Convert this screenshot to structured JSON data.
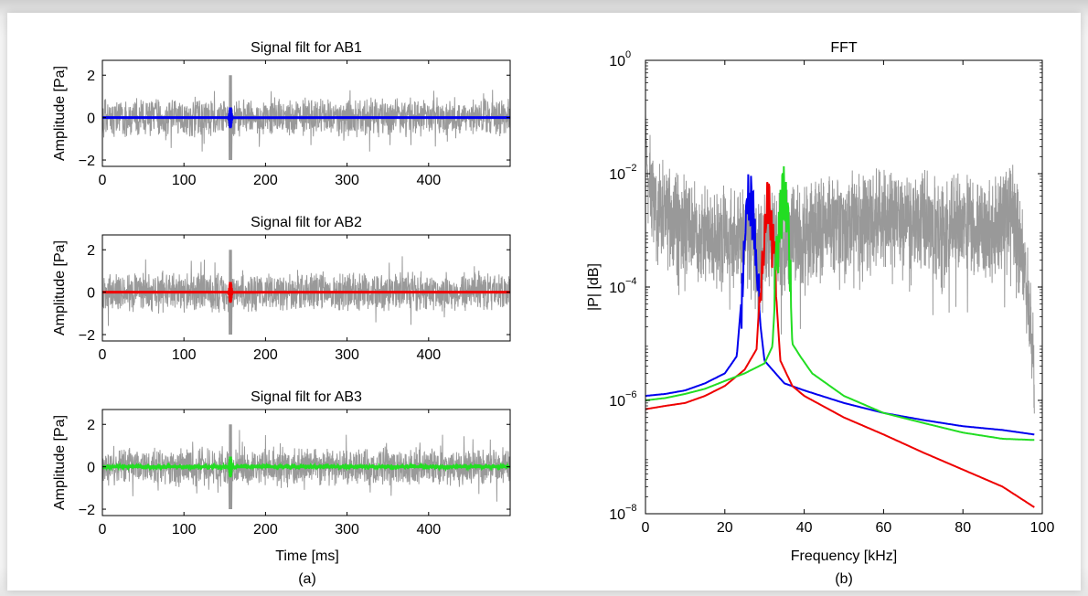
{
  "panel_labels": {
    "a": "(a)",
    "b": "(b)"
  },
  "chart_data": [
    {
      "type": "line",
      "title": "Signal filt for AB1",
      "xlabel": "",
      "ylabel": "Amplitude [Pa]",
      "xlim": [
        0,
        500
      ],
      "ylim": [
        -2.3,
        2.7
      ],
      "xticks": [
        0,
        100,
        200,
        300,
        400
      ],
      "yticks": [
        -2,
        0,
        2
      ],
      "event_ms": 157,
      "series": [
        {
          "role": "raw",
          "color": "#999999",
          "amplitude_typical": 1.0,
          "amplitude_max": 2.0
        },
        {
          "role": "filtered",
          "color": "#0000ee",
          "amplitude_max": 0.5
        }
      ]
    },
    {
      "type": "line",
      "title": "Signal filt for AB2",
      "xlabel": "",
      "ylabel": "Amplitude [Pa]",
      "xlim": [
        0,
        500
      ],
      "ylim": [
        -2.3,
        2.7
      ],
      "xticks": [
        0,
        100,
        200,
        300,
        400
      ],
      "yticks": [
        -2,
        0,
        2
      ],
      "event_ms": 157,
      "series": [
        {
          "role": "raw",
          "color": "#999999",
          "amplitude_typical": 1.0,
          "amplitude_max": 2.0
        },
        {
          "role": "filtered",
          "color": "#ee0000",
          "amplitude_max": 0.5
        }
      ]
    },
    {
      "type": "line",
      "title": "Signal filt for AB3",
      "xlabel": "Time [ms]",
      "ylabel": "Amplitude [Pa]",
      "xlim": [
        0,
        500
      ],
      "ylim": [
        -2.3,
        2.7
      ],
      "xticks": [
        0,
        100,
        200,
        300,
        400
      ],
      "yticks": [
        -2,
        0,
        2
      ],
      "event_ms": 157,
      "series": [
        {
          "role": "raw",
          "color": "#999999",
          "amplitude_typical": 1.0,
          "amplitude_max": 2.0
        },
        {
          "role": "filtered",
          "color": "#22dd22",
          "amplitude_max": 0.5
        }
      ]
    },
    {
      "type": "line",
      "title": "FFT",
      "xlabel": "Frequency [kHz]",
      "ylabel": "|P| [dB]",
      "xlim": [
        0,
        100
      ],
      "ylim": [
        1e-08,
        1
      ],
      "yscale": "log",
      "xticks": [
        0,
        20,
        40,
        60,
        80,
        100
      ],
      "yticks": [
        {
          "value": 1e-08,
          "base": "10",
          "exp": "−8"
        },
        {
          "value": 1e-06,
          "base": "10",
          "exp": "−6"
        },
        {
          "value": 0.0001,
          "base": "10",
          "exp": "−4"
        },
        {
          "value": 0.01,
          "base": "10",
          "exp": "−2"
        },
        {
          "value": 1,
          "base": "10",
          "exp": "0"
        }
      ],
      "series": [
        {
          "role": "raw-spectrum",
          "color": "#999999",
          "x": [
            0,
            0.5,
            2,
            5,
            10,
            15,
            20,
            25,
            30,
            35,
            40,
            45,
            50,
            55,
            60,
            65,
            70,
            75,
            80,
            85,
            90,
            92,
            93,
            94,
            95,
            96,
            97,
            98
          ],
          "y": [
            0.1,
            0.01,
            0.004,
            0.002,
            0.0012,
            0.0009,
            0.0008,
            0.0007,
            0.0006,
            0.0007,
            0.0009,
            0.0012,
            0.0015,
            0.0015,
            0.0016,
            0.0014,
            0.0015,
            0.0012,
            0.0013,
            0.0011,
            0.0012,
            0.004,
            0.0015,
            0.0006,
            0.0003,
            0.0001,
            3e-05,
            4e-06
          ]
        },
        {
          "role": "AB1-spectrum",
          "color": "#0000ee",
          "x": [
            0,
            5,
            10,
            15,
            20,
            23,
            25,
            26,
            27,
            28,
            29,
            30,
            35,
            40,
            50,
            60,
            70,
            80,
            90,
            98
          ],
          "y": [
            1.2e-06,
            1.3e-06,
            1.5e-06,
            2e-06,
            3e-06,
            6e-06,
            0.0003,
            0.006,
            0.002,
            0.0002,
            2e-05,
            5e-06,
            2e-06,
            1.5e-06,
            9e-07,
            6e-07,
            4.5e-07,
            3.5e-07,
            3e-07,
            2.5e-07
          ]
        },
        {
          "role": "AB2-spectrum",
          "color": "#ee0000",
          "x": [
            0,
            5,
            10,
            15,
            20,
            25,
            28,
            29.5,
            30.5,
            31.5,
            32.5,
            34,
            37,
            40,
            50,
            60,
            70,
            80,
            90,
            98
          ],
          "y": [
            7e-07,
            8e-07,
            9e-07,
            1.2e-06,
            1.8e-06,
            3.5e-06,
            8e-06,
            0.0005,
            0.003,
            0.002,
            0.0002,
            5e-06,
            1.8e-06,
            1.2e-06,
            5e-07,
            2.5e-07,
            1.2e-07,
            6e-08,
            3e-08,
            1.3e-08
          ]
        },
        {
          "role": "AB3-spectrum",
          "color": "#22dd22",
          "x": [
            0,
            5,
            10,
            15,
            20,
            25,
            30,
            32,
            33,
            34,
            35,
            36,
            37,
            39,
            42,
            50,
            60,
            70,
            80,
            90,
            98
          ],
          "y": [
            1e-06,
            1.1e-06,
            1.3e-06,
            1.6e-06,
            2.2e-06,
            3e-06,
            4.5e-06,
            9e-06,
            0.0002,
            0.002,
            0.006,
            0.001,
            1e-05,
            6e-06,
            3e-06,
            1.2e-06,
            6e-07,
            4e-07,
            2.7e-07,
            2.1e-07,
            2e-07
          ]
        }
      ]
    }
  ]
}
